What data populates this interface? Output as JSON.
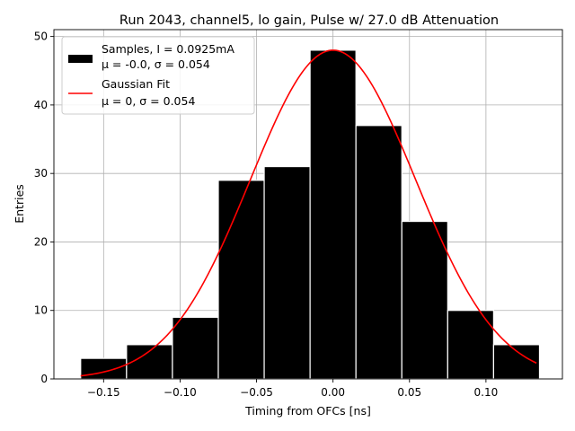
{
  "chart_data": {
    "type": "bar",
    "title": "Run 2043, channel5, lo gain, Pulse w/ 27.0 dB Attenuation",
    "xlabel": "Timing from OFCs [ns]",
    "ylabel": "Entries",
    "xlim": [
      -0.1825,
      0.15
    ],
    "ylim": [
      0,
      51
    ],
    "grid": true,
    "x_ticks": [
      -0.15,
      -0.1,
      -0.05,
      0.0,
      0.05,
      0.1
    ],
    "x_tick_labels": [
      "−0.15",
      "−0.10",
      "−0.05",
      "0.00",
      "0.05",
      "0.10"
    ],
    "y_ticks": [
      0,
      10,
      20,
      30,
      40,
      50
    ],
    "y_tick_labels": [
      "0",
      "10",
      "20",
      "30",
      "40",
      "50"
    ],
    "histogram": {
      "name": "Samples, I = 0.0925mA",
      "stats": "μ = -0.0, σ = 0.054",
      "color": "#000000",
      "edgecolor": "#ffffff",
      "bin_edges": [
        -0.165,
        -0.135,
        -0.105,
        -0.075,
        -0.045,
        -0.015,
        0.015,
        0.045,
        0.075,
        0.105,
        0.135
      ],
      "counts": [
        3,
        5,
        9,
        29,
        31,
        48,
        37,
        23,
        10,
        5
      ]
    },
    "fit": {
      "name": "Gaussian Fit",
      "stats": "μ = 0, σ = 0.054",
      "color": "#ff0000",
      "amplitude": 48,
      "mu": 0.0,
      "sigma": 0.054,
      "x_range": [
        -0.165,
        0.133
      ]
    },
    "legend_position": "upper-left"
  }
}
